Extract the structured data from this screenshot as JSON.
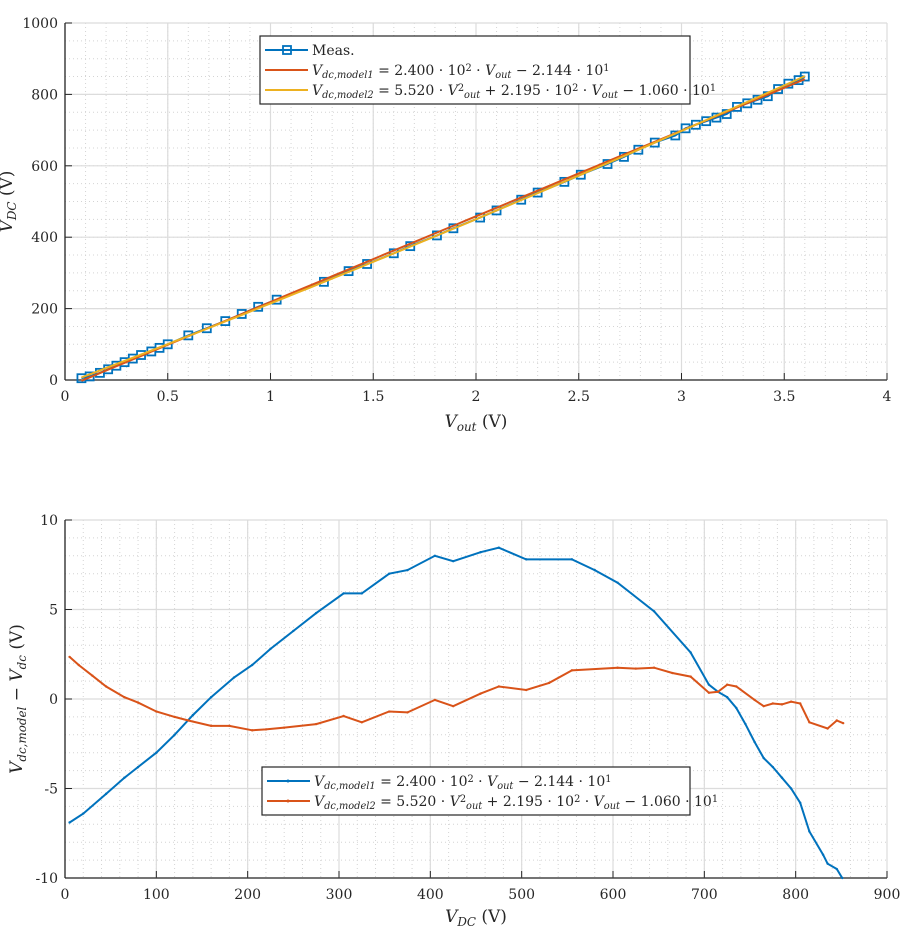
{
  "chart_data": [
    {
      "type": "line",
      "xlabel": [
        {
          "t": "V",
          "s": "i"
        },
        {
          "t": "out",
          "s": "sub"
        },
        {
          "t": " (V)",
          "s": "n"
        }
      ],
      "ylabel": [
        {
          "t": "V",
          "s": "i"
        },
        {
          "t": "DC",
          "s": "sub"
        },
        {
          "t": " (V)",
          "s": "n"
        }
      ],
      "xlim": [
        0,
        4
      ],
      "ylim": [
        0,
        1000
      ],
      "xticks": [
        0,
        0.5,
        1,
        1.5,
        2,
        2.5,
        3,
        3.5,
        4
      ],
      "yticks": [
        0,
        200,
        400,
        600,
        800,
        1000
      ],
      "xminor": 0.1,
      "yminor": 50,
      "grid": true,
      "legend_position": "top-center",
      "series": [
        {
          "name": [
            {
              "t": "Meas.",
              "s": "n"
            }
          ],
          "color": "#0072BD",
          "marker": "square",
          "x": [
            0.08,
            0.12,
            0.17,
            0.21,
            0.25,
            0.29,
            0.33,
            0.37,
            0.42,
            0.46,
            0.5,
            0.6,
            0.69,
            0.78,
            0.86,
            0.94,
            1.03,
            1.26,
            1.38,
            1.47,
            1.6,
            1.68,
            1.81,
            1.89,
            2.02,
            2.1,
            2.22,
            2.3,
            2.43,
            2.51,
            2.64,
            2.72,
            2.79,
            2.87,
            2.97,
            3.02,
            3.07,
            3.12,
            3.17,
            3.22,
            3.27,
            3.32,
            3.37,
            3.42,
            3.47,
            3.52,
            3.57,
            3.6
          ],
          "y": [
            5,
            10,
            20,
            30,
            40,
            50,
            60,
            70,
            80,
            90,
            100,
            125,
            145,
            165,
            185,
            205,
            225,
            275,
            305,
            325,
            355,
            375,
            405,
            425,
            455,
            475,
            505,
            525,
            555,
            575,
            605,
            625,
            645,
            665,
            685,
            705,
            715,
            725,
            735,
            745,
            765,
            775,
            785,
            795,
            815,
            830,
            840,
            850
          ]
        },
        {
          "name": [
            {
              "t": "V",
              "s": "i"
            },
            {
              "t": "dc,model1",
              "s": "sub"
            },
            {
              "t": " = 2.400 · 10",
              "s": "n"
            },
            {
              "t": "2",
              "s": "sup"
            },
            {
              "t": " · ",
              "s": "n"
            },
            {
              "t": "V",
              "s": "i"
            },
            {
              "t": "out",
              "s": "sub"
            },
            {
              "t": " − 2.144 · 10",
              "s": "n"
            },
            {
              "t": "1",
              "s": "sup"
            }
          ],
          "color": "#D95319",
          "coefficients": [
            0,
            240.0,
            -21.44
          ],
          "x_range": [
            0.08,
            3.6
          ]
        },
        {
          "name": [
            {
              "t": "V",
              "s": "i"
            },
            {
              "t": "dc,model2",
              "s": "sub"
            },
            {
              "t": " = 5.520 · ",
              "s": "n"
            },
            {
              "t": "V",
              "s": "i"
            },
            {
              "t": "2",
              "s": "sup"
            },
            {
              "t": "out",
              "s": "sub"
            },
            {
              "t": " + 2.195 · 10",
              "s": "n"
            },
            {
              "t": "2",
              "s": "sup"
            },
            {
              "t": " · ",
              "s": "n"
            },
            {
              "t": "V",
              "s": "i"
            },
            {
              "t": "out",
              "s": "sub"
            },
            {
              "t": " − 1.060 · 10",
              "s": "n"
            },
            {
              "t": "1",
              "s": "sup"
            }
          ],
          "color": "#EDB120",
          "coefficients": [
            5.52,
            219.5,
            -10.6
          ],
          "x_range": [
            0.08,
            3.6
          ]
        }
      ]
    },
    {
      "type": "line",
      "xlabel": [
        {
          "t": "V",
          "s": "i"
        },
        {
          "t": "DC",
          "s": "sub"
        },
        {
          "t": " (V)",
          "s": "n"
        }
      ],
      "ylabel": [
        {
          "t": "V",
          "s": "i"
        },
        {
          "t": "dc,model",
          "s": "sub"
        },
        {
          "t": " − ",
          "s": "n"
        },
        {
          "t": "V",
          "s": "i"
        },
        {
          "t": "dc",
          "s": "sub"
        },
        {
          "t": " (V)",
          "s": "n"
        }
      ],
      "xlim": [
        0,
        900
      ],
      "ylim": [
        -10,
        10
      ],
      "xticks": [
        0,
        100,
        200,
        300,
        400,
        500,
        600,
        700,
        800,
        900
      ],
      "yticks": [
        -10,
        -5,
        0,
        5,
        10
      ],
      "xminor": 20,
      "yminor": 1,
      "grid": true,
      "legend_position": "bottom-center",
      "series": [
        {
          "name": [
            {
              "t": "V",
              "s": "i"
            },
            {
              "t": "dc,model1",
              "s": "sub"
            },
            {
              "t": " = 2.400 · 10",
              "s": "n"
            },
            {
              "t": "2",
              "s": "sup"
            },
            {
              "t": " · ",
              "s": "n"
            },
            {
              "t": "V",
              "s": "i"
            },
            {
              "t": "out",
              "s": "sub"
            },
            {
              "t": " − 2.144 · 10",
              "s": "n"
            },
            {
              "t": "1",
              "s": "sup"
            }
          ],
          "color": "#0072BD",
          "x": [
            5,
            20,
            45,
            65,
            80,
            100,
            120,
            140,
            160,
            185,
            205,
            225,
            250,
            275,
            305,
            325,
            355,
            375,
            405,
            425,
            455,
            475,
            505,
            555,
            580,
            605,
            645,
            685,
            705,
            715,
            725,
            735,
            745,
            755,
            765,
            775,
            785,
            795,
            805,
            815,
            830,
            835,
            845,
            851
          ],
          "y": [
            -6.9,
            -6.4,
            -5.3,
            -4.4,
            -3.8,
            -3.0,
            -2.0,
            -0.9,
            0.1,
            1.2,
            1.9,
            2.8,
            3.8,
            4.8,
            5.9,
            5.9,
            7.0,
            7.2,
            8.0,
            7.7,
            8.2,
            8.45,
            7.8,
            7.8,
            7.2,
            6.5,
            4.9,
            2.6,
            0.8,
            0.4,
            0.1,
            -0.5,
            -1.4,
            -2.4,
            -3.3,
            -3.8,
            -4.4,
            -5.0,
            -5.8,
            -7.4,
            -8.7,
            -9.2,
            -9.5,
            -10
          ]
        },
        {
          "name": [
            {
              "t": "V",
              "s": "i"
            },
            {
              "t": "dc,model2",
              "s": "sub"
            },
            {
              "t": " = 5.520 · ",
              "s": "n"
            },
            {
              "t": "V",
              "s": "i"
            },
            {
              "t": "2",
              "s": "sup"
            },
            {
              "t": "out",
              "s": "sub"
            },
            {
              "t": " + 2.195 · 10",
              "s": "n"
            },
            {
              "t": "2",
              "s": "sup"
            },
            {
              "t": " · ",
              "s": "n"
            },
            {
              "t": "V",
              "s": "i"
            },
            {
              "t": "out",
              "s": "sub"
            },
            {
              "t": " − 1.060 · 10",
              "s": "n"
            },
            {
              "t": "1",
              "s": "sup"
            }
          ],
          "color": "#D95319",
          "x": [
            5,
            15,
            30,
            45,
            65,
            80,
            100,
            120,
            135,
            160,
            180,
            205,
            220,
            240,
            275,
            305,
            325,
            355,
            375,
            405,
            425,
            455,
            475,
            505,
            530,
            555,
            605,
            625,
            645,
            665,
            685,
            705,
            715,
            725,
            735,
            755,
            765,
            775,
            785,
            795,
            805,
            815,
            835,
            845,
            852
          ],
          "y": [
            2.35,
            1.9,
            1.3,
            0.7,
            0.1,
            -0.2,
            -0.7,
            -1.0,
            -1.2,
            -1.5,
            -1.5,
            -1.75,
            -1.7,
            -1.6,
            -1.4,
            -0.95,
            -1.3,
            -0.7,
            -0.75,
            -0.05,
            -0.4,
            0.3,
            0.7,
            0.5,
            0.9,
            1.6,
            1.75,
            1.7,
            1.75,
            1.45,
            1.25,
            0.35,
            0.4,
            0.8,
            0.7,
            -0.05,
            -0.4,
            -0.25,
            -0.3,
            -0.15,
            -0.25,
            -1.3,
            -1.65,
            -1.2,
            -1.35
          ]
        }
      ]
    }
  ]
}
